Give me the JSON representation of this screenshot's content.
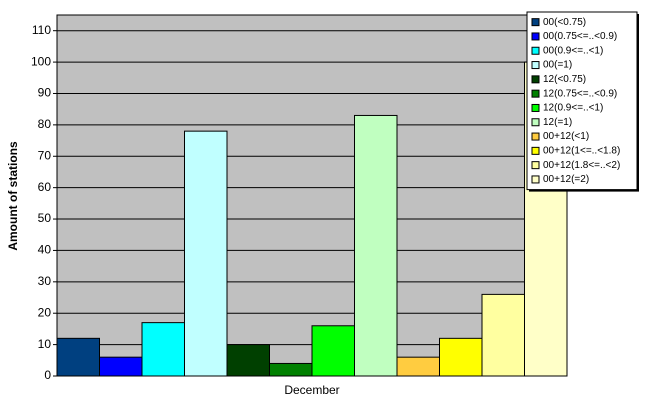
{
  "chart_data": {
    "type": "bar",
    "y_label": "Amount of stations",
    "categories": [
      "December"
    ],
    "series": [
      {
        "name": "00(<0.75)",
        "color": "#004080",
        "values": [
          12
        ]
      },
      {
        "name": "00(0.75<=..<0.9)",
        "color": "#0000ff",
        "values": [
          6
        ]
      },
      {
        "name": "00(0.9<=..<1)",
        "color": "#00ffff",
        "values": [
          17
        ]
      },
      {
        "name": "00(=1)",
        "color": "#c0ffff",
        "values": [
          78
        ]
      },
      {
        "name": "12(<0.75)",
        "color": "#004000",
        "values": [
          10
        ]
      },
      {
        "name": "12(0.75<=..<0.9)",
        "color": "#008000",
        "values": [
          4
        ]
      },
      {
        "name": "12(0.9<=..<1)",
        "color": "#00ff00",
        "values": [
          16
        ]
      },
      {
        "name": "12(=1)",
        "color": "#c0ffc0",
        "values": [
          83
        ]
      },
      {
        "name": "00+12(<1)",
        "color": "#ffcc40",
        "values": [
          6
        ]
      },
      {
        "name": "00+12(1<=..<1.8)",
        "color": "#ffff00",
        "values": [
          12
        ]
      },
      {
        "name": "00+12(1.8<=..<2)",
        "color": "#ffffa0",
        "values": [
          26
        ]
      },
      {
        "name": "00+12(=2)",
        "color": "#ffffc8",
        "values": [
          100
        ]
      }
    ],
    "ylim": [
      0,
      115
    ],
    "yticks": [
      0,
      10,
      20,
      30,
      40,
      50,
      60,
      70,
      80,
      90,
      100,
      110
    ],
    "grid": true,
    "legend": "top-right"
  }
}
